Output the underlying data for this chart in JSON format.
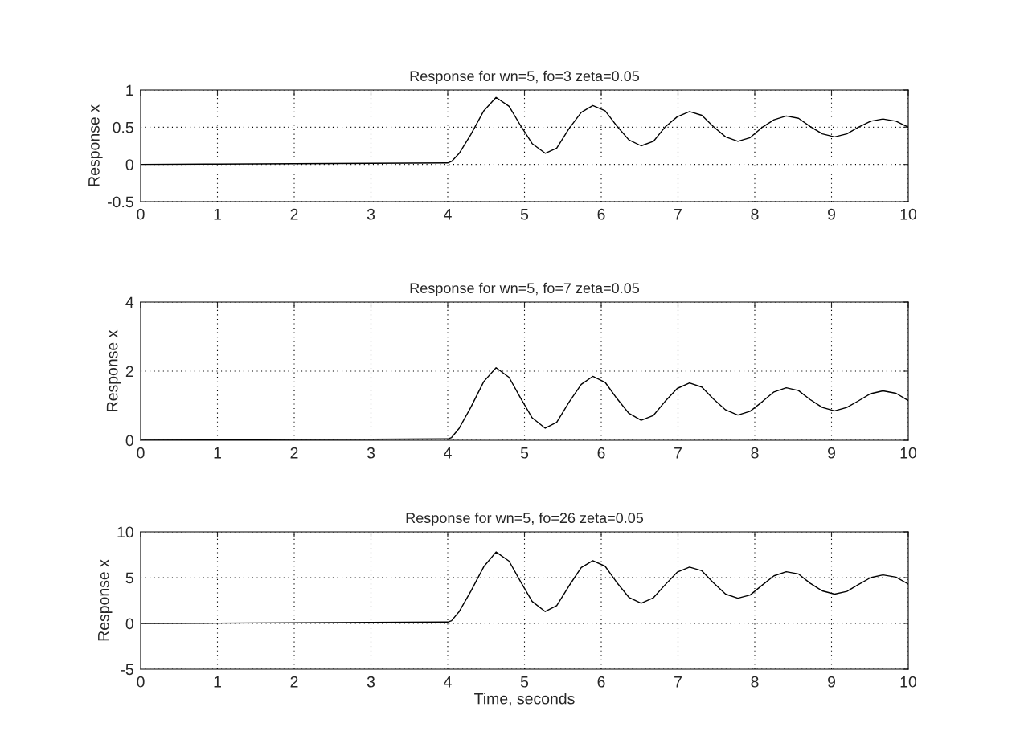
{
  "chart_data": [
    {
      "type": "line",
      "title": "Response for wn=5, fo=3 zeta=0.05",
      "ylabel": "Response x",
      "x": [
        0,
        1,
        2,
        3,
        4,
        4.05,
        4.15,
        4.3,
        4.47,
        4.63,
        4.8,
        4.95,
        5.1,
        5.27,
        5.42,
        5.58,
        5.74,
        5.89,
        6.05,
        6.2,
        6.36,
        6.52,
        6.68,
        6.83,
        6.99,
        7.15,
        7.31,
        7.46,
        7.62,
        7.78,
        7.94,
        8.1,
        8.25,
        8.41,
        8.57,
        8.72,
        8.88,
        9.04,
        9.2,
        9.35,
        9.51,
        9.67,
        9.84,
        10
      ],
      "series": [
        {
          "color": "#000000",
          "values": [
            0,
            0.005,
            0.01,
            0.015,
            0.02,
            0.04,
            0.15,
            0.4,
            0.72,
            0.9,
            0.78,
            0.52,
            0.28,
            0.15,
            0.22,
            0.48,
            0.7,
            0.79,
            0.72,
            0.52,
            0.33,
            0.25,
            0.31,
            0.5,
            0.64,
            0.71,
            0.66,
            0.51,
            0.37,
            0.31,
            0.36,
            0.5,
            0.6,
            0.65,
            0.62,
            0.51,
            0.41,
            0.37,
            0.41,
            0.5,
            0.58,
            0.61,
            0.58,
            0.5
          ]
        }
      ],
      "xlim": [
        0,
        10
      ],
      "xticks": [
        0,
        1,
        2,
        3,
        4,
        5,
        6,
        7,
        8,
        9,
        10
      ],
      "ylim": [
        -0.5,
        1
      ],
      "yticks": [
        -0.5,
        0,
        0.5,
        1
      ],
      "grid": true,
      "line_style": "solid"
    },
    {
      "type": "line",
      "title": "Response for wn=5, fo=7 zeta=0.05",
      "ylabel": "Response x",
      "x": [
        0,
        1,
        2,
        3,
        4,
        4.05,
        4.15,
        4.3,
        4.47,
        4.63,
        4.8,
        4.95,
        5.1,
        5.27,
        5.42,
        5.58,
        5.74,
        5.89,
        6.05,
        6.2,
        6.36,
        6.52,
        6.68,
        6.83,
        6.99,
        7.15,
        7.31,
        7.46,
        7.62,
        7.78,
        7.94,
        8.1,
        8.25,
        8.41,
        8.57,
        8.72,
        8.88,
        9.04,
        9.2,
        9.35,
        9.51,
        9.67,
        9.84,
        10
      ],
      "series": [
        {
          "color": "#000000",
          "values": [
            0,
            0.01,
            0.02,
            0.03,
            0.04,
            0.08,
            0.35,
            0.95,
            1.7,
            2.1,
            1.82,
            1.22,
            0.65,
            0.35,
            0.52,
            1.1,
            1.62,
            1.85,
            1.68,
            1.22,
            0.78,
            0.58,
            0.72,
            1.12,
            1.5,
            1.66,
            1.54,
            1.2,
            0.88,
            0.73,
            0.84,
            1.12,
            1.4,
            1.52,
            1.44,
            1.18,
            0.95,
            0.85,
            0.95,
            1.14,
            1.35,
            1.43,
            1.36,
            1.15
          ]
        }
      ],
      "xlim": [
        0,
        10
      ],
      "xticks": [
        0,
        1,
        2,
        3,
        4,
        5,
        6,
        7,
        8,
        9,
        10
      ],
      "ylim": [
        0,
        4
      ],
      "yticks": [
        0,
        2,
        4
      ],
      "grid": true,
      "line_style": "solid"
    },
    {
      "type": "line",
      "title": "Response for wn=5, fo=26 zeta=0.05",
      "ylabel": "Response x",
      "xlabel": "Time, seconds",
      "x": [
        0,
        1,
        2,
        3,
        4,
        4.05,
        4.15,
        4.3,
        4.47,
        4.63,
        4.8,
        4.95,
        5.1,
        5.27,
        5.42,
        5.58,
        5.74,
        5.89,
        6.05,
        6.2,
        6.36,
        6.52,
        6.68,
        6.83,
        6.99,
        7.15,
        7.31,
        7.46,
        7.62,
        7.78,
        7.94,
        8.1,
        8.25,
        8.41,
        8.57,
        8.72,
        8.88,
        9.04,
        9.2,
        9.35,
        9.51,
        9.67,
        9.84,
        10
      ],
      "series": [
        {
          "color": "#000000",
          "values": [
            0,
            0.03,
            0.08,
            0.12,
            0.15,
            0.3,
            1.3,
            3.5,
            6.2,
            7.8,
            6.8,
            4.55,
            2.4,
            1.3,
            1.95,
            4.1,
            6.1,
            6.85,
            6.25,
            4.5,
            2.85,
            2.2,
            2.8,
            4.2,
            5.6,
            6.15,
            5.75,
            4.45,
            3.2,
            2.75,
            3.1,
            4.2,
            5.2,
            5.65,
            5.4,
            4.4,
            3.55,
            3.2,
            3.5,
            4.25,
            5.0,
            5.3,
            5.05,
            4.3
          ]
        }
      ],
      "xlim": [
        0,
        10
      ],
      "xticks": [
        0,
        1,
        2,
        3,
        4,
        5,
        6,
        7,
        8,
        9,
        10
      ],
      "ylim": [
        -5,
        10
      ],
      "yticks": [
        -5,
        0,
        5,
        10
      ],
      "grid": true,
      "line_style": "solid"
    }
  ]
}
